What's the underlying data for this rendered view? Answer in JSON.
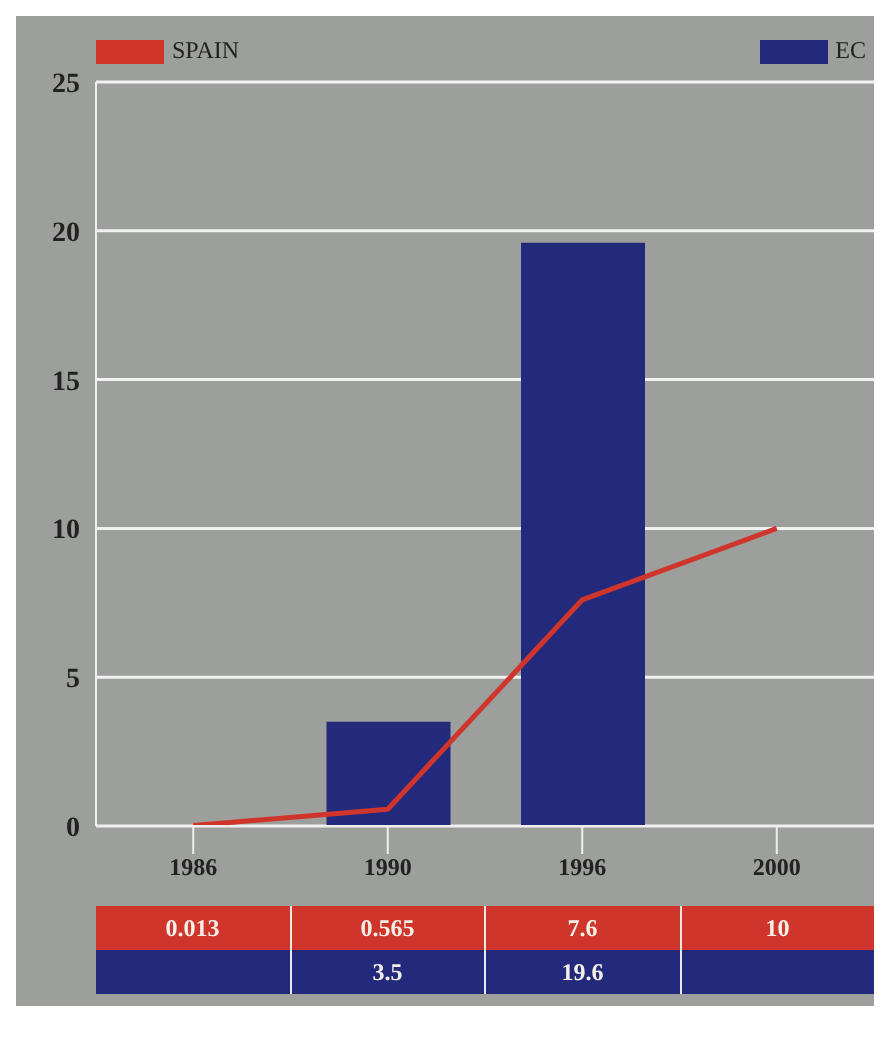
{
  "chart_data": {
    "type": "bar",
    "categories": [
      "1986",
      "1990",
      "1996",
      "2000"
    ],
    "series": [
      {
        "name": "SPAIN",
        "type": "line",
        "color": "#d0352c",
        "values": [
          0.013,
          0.565,
          7.6,
          10
        ]
      },
      {
        "name": "EC",
        "color": "#232a7c",
        "values": [
          null,
          3.5,
          19.6,
          null
        ]
      }
    ],
    "ylim": [
      0,
      25
    ],
    "yticks": [
      0,
      5,
      10,
      15,
      20,
      25
    ],
    "grid": "y",
    "legend": "top",
    "marker": "none",
    "line_style": "solid",
    "data_labels": true
  }
}
